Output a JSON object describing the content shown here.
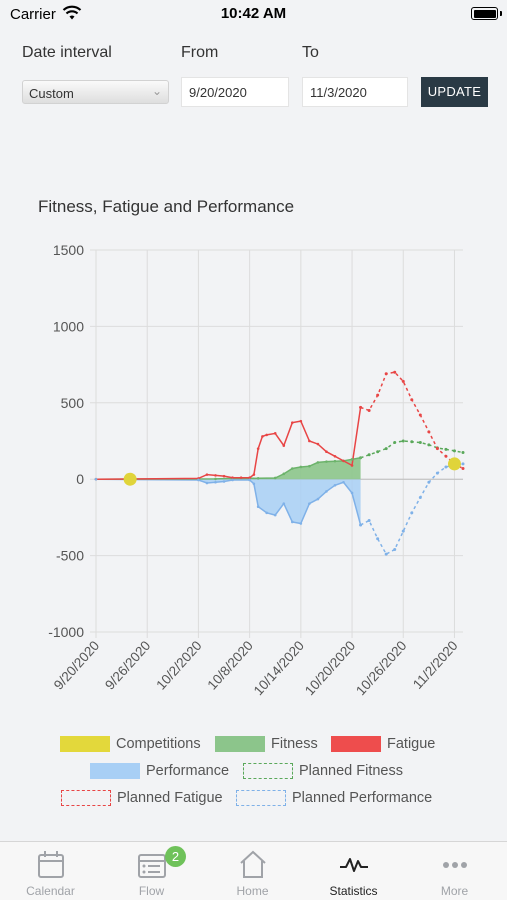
{
  "status_bar": {
    "carrier": "Carrier",
    "time": "10:42 AM"
  },
  "controls": {
    "date_interval_label": "Date interval",
    "from_label": "From",
    "to_label": "To",
    "interval_value": "Custom",
    "from_value": "9/20/2020",
    "to_value": "11/3/2020",
    "update_label": "UPDATE"
  },
  "chart_title": "Fitness, Fatigue and Performance",
  "chart_data": {
    "type": "line",
    "title": "Fitness, Fatigue and Performance",
    "x": [
      "9/20/2020",
      "9/26/2020",
      "10/2/2020",
      "10/8/2020",
      "10/14/2020",
      "10/20/2020",
      "10/26/2020",
      "11/2/2020"
    ],
    "ylim": [
      -1000,
      1500
    ],
    "yticks": [
      1500,
      1000,
      500,
      0,
      -500,
      -1000
    ],
    "xlim_days": [
      0,
      43
    ],
    "grid": true,
    "series": [
      {
        "name": "Fitness",
        "color": "#6cb36b",
        "style": "solid-fill",
        "points": [
          [
            0,
            0
          ],
          [
            14,
            2
          ],
          [
            16,
            5
          ],
          [
            19,
            6
          ],
          [
            21,
            8
          ],
          [
            22,
            35
          ],
          [
            23,
            70
          ],
          [
            24,
            80
          ],
          [
            25,
            85
          ],
          [
            26,
            110
          ],
          [
            27,
            115
          ],
          [
            28,
            118
          ],
          [
            29,
            120
          ],
          [
            30,
            130
          ],
          [
            31,
            140
          ]
        ]
      },
      {
        "name": "Fatigue",
        "color": "#e84545",
        "style": "solid",
        "points": [
          [
            0,
            0
          ],
          [
            12,
            5
          ],
          [
            13,
            30
          ],
          [
            14,
            25
          ],
          [
            15,
            20
          ],
          [
            16,
            10
          ],
          [
            17,
            10
          ],
          [
            18,
            10
          ],
          [
            18.5,
            30
          ],
          [
            19,
            200
          ],
          [
            19.5,
            280
          ],
          [
            20,
            290
          ],
          [
            21,
            300
          ],
          [
            22,
            220
          ],
          [
            23,
            370
          ],
          [
            24,
            380
          ],
          [
            25,
            250
          ],
          [
            26,
            230
          ],
          [
            27,
            180
          ],
          [
            28,
            150
          ],
          [
            29,
            120
          ],
          [
            30,
            90
          ],
          [
            31,
            470
          ]
        ]
      },
      {
        "name": "Performance",
        "color": "#7fb1e8",
        "style": "solid-fill",
        "points": [
          [
            0,
            0
          ],
          [
            12,
            -5
          ],
          [
            13,
            -25
          ],
          [
            14,
            -20
          ],
          [
            15,
            -15
          ],
          [
            16,
            -5
          ],
          [
            18,
            -5
          ],
          [
            18.5,
            -30
          ],
          [
            19,
            -180
          ],
          [
            20,
            -220
          ],
          [
            21,
            -235
          ],
          [
            22,
            -160
          ],
          [
            23,
            -280
          ],
          [
            24,
            -290
          ],
          [
            25,
            -160
          ],
          [
            26,
            -130
          ],
          [
            27,
            -80
          ],
          [
            28,
            -40
          ],
          [
            29,
            -20
          ],
          [
            30,
            -90
          ],
          [
            31,
            -300
          ]
        ]
      },
      {
        "name": "Planned Fitness",
        "color": "#5aa85a",
        "style": "dashed",
        "points": [
          [
            31,
            140
          ],
          [
            32,
            160
          ],
          [
            33,
            180
          ],
          [
            34,
            200
          ],
          [
            35,
            240
          ],
          [
            36,
            250
          ],
          [
            37,
            245
          ],
          [
            38,
            240
          ],
          [
            39,
            225
          ],
          [
            40,
            205
          ],
          [
            41,
            195
          ],
          [
            42,
            185
          ],
          [
            43,
            175
          ]
        ]
      },
      {
        "name": "Planned Fatigue",
        "color": "#e84545",
        "style": "dashed",
        "points": [
          [
            31,
            470
          ],
          [
            32,
            450
          ],
          [
            33,
            550
          ],
          [
            34,
            690
          ],
          [
            35,
            700
          ],
          [
            36,
            640
          ],
          [
            37,
            520
          ],
          [
            38,
            420
          ],
          [
            39,
            310
          ],
          [
            40,
            200
          ],
          [
            41,
            150
          ],
          [
            42,
            100
          ],
          [
            43,
            70
          ]
        ]
      },
      {
        "name": "Planned Performance",
        "color": "#7fb1e8",
        "style": "dashed",
        "points": [
          [
            31,
            -300
          ],
          [
            32,
            -270
          ],
          [
            33,
            -390
          ],
          [
            34,
            -490
          ],
          [
            35,
            -460
          ],
          [
            36,
            -340
          ],
          [
            37,
            -220
          ],
          [
            38,
            -120
          ],
          [
            39,
            -20
          ],
          [
            40,
            40
          ],
          [
            41,
            80
          ],
          [
            42,
            95
          ],
          [
            43,
            100
          ]
        ]
      },
      {
        "name": "Competitions",
        "color": "#e0d43a",
        "style": "marker",
        "points": [
          [
            4,
            0
          ],
          [
            42,
            100
          ]
        ]
      }
    ]
  },
  "legend": [
    {
      "label": "Competitions",
      "type": "solid",
      "color": "#e3d83b"
    },
    {
      "label": "Fitness",
      "type": "solid",
      "color": "#8cc58b"
    },
    {
      "label": "Fatigue",
      "type": "solid",
      "color": "#ee4d4d"
    },
    {
      "label": "Performance",
      "type": "solid",
      "color": "#a8cff5"
    },
    {
      "label": "Planned Fitness",
      "type": "dashed",
      "color": "#5aa85a"
    },
    {
      "label": "Planned Fatigue",
      "type": "dashed",
      "color": "#e84545"
    },
    {
      "label": "Planned Performance",
      "type": "dashed",
      "color": "#7fb1e8"
    }
  ],
  "tabs": [
    {
      "label": "Calendar",
      "icon": "calendar-icon",
      "active": false
    },
    {
      "label": "Flow",
      "icon": "flow-icon",
      "active": false,
      "badge": "2"
    },
    {
      "label": "Home",
      "icon": "home-icon",
      "active": false
    },
    {
      "label": "Statistics",
      "icon": "statistics-icon",
      "active": true
    },
    {
      "label": "More",
      "icon": "more-icon",
      "active": false
    }
  ]
}
